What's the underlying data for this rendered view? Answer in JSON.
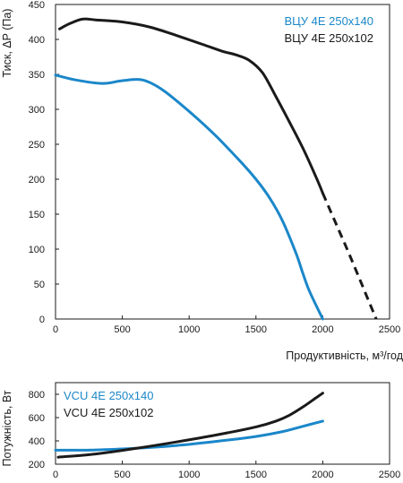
{
  "chart_data": [
    {
      "type": "line",
      "title": "",
      "xlabel": "Продуктивність, м³/год",
      "ylabel": "Тиск, ΔP (Па)",
      "xlim": [
        0,
        2500
      ],
      "ylim": [
        0,
        450
      ],
      "x_ticks": [
        "0",
        "500",
        "1000",
        "1500",
        "2000",
        "2500"
      ],
      "y_ticks": [
        "0",
        "50",
        "100",
        "150",
        "200",
        "250",
        "300",
        "350",
        "400",
        "450"
      ],
      "grid": false,
      "legend_position": "top-right",
      "series": [
        {
          "name": "ВЦУ 4Е 250х140",
          "color": "#1b87c9",
          "x": [
            0,
            150,
            350,
            500,
            650,
            800,
            1000,
            1200,
            1400,
            1500,
            1600,
            1700,
            1800,
            1850,
            1900,
            2000
          ],
          "y": [
            349,
            342,
            337,
            341,
            342,
            328,
            297,
            262,
            222,
            200,
            174,
            140,
            94,
            66,
            40,
            0
          ]
        },
        {
          "name": "ВЦУ 4Е 250х102",
          "color": "#1a1a1a",
          "x": [
            30,
            100,
            200,
            300,
            500,
            700,
            900,
            1100,
            1250,
            1350,
            1450,
            1550,
            1650,
            1750,
            1850,
            1950,
            2000
          ],
          "y": [
            415,
            422,
            429,
            428,
            425,
            418,
            406,
            393,
            383,
            378,
            370,
            352,
            318,
            282,
            245,
            203,
            180
          ]
        },
        {
          "name": "",
          "style": "dashed",
          "color": "#1a1a1a",
          "x": [
            2000,
            2100,
            2200,
            2300,
            2400
          ],
          "y": [
            180,
            136,
            92,
            46,
            0
          ]
        }
      ]
    },
    {
      "type": "line",
      "title": "",
      "xlabel": "",
      "ylabel": "Потужність, Вт",
      "xlim": [
        0,
        2500
      ],
      "ylim": [
        200,
        900
      ],
      "x_ticks": [
        "0",
        "500",
        "1000",
        "1500",
        "2000",
        "2500"
      ],
      "y_ticks": [
        "200",
        "400",
        "600",
        "800"
      ],
      "grid": false,
      "legend_position": "top-left",
      "series": [
        {
          "name": "VCU 4E 250x140",
          "color": "#1b87c9",
          "x": [
            0,
            300,
            600,
            900,
            1200,
            1500,
            1700,
            1850,
            2000
          ],
          "y": [
            320,
            322,
            336,
            360,
            395,
            438,
            480,
            525,
            570
          ]
        },
        {
          "name": "VCU 4E 250x102",
          "color": "#1a1a1a",
          "x": [
            20,
            300,
            600,
            900,
            1200,
            1500,
            1650,
            1750,
            1850,
            1950,
            2000
          ],
          "y": [
            260,
            288,
            335,
            390,
            450,
            520,
            570,
            620,
            690,
            770,
            810
          ]
        }
      ]
    }
  ]
}
